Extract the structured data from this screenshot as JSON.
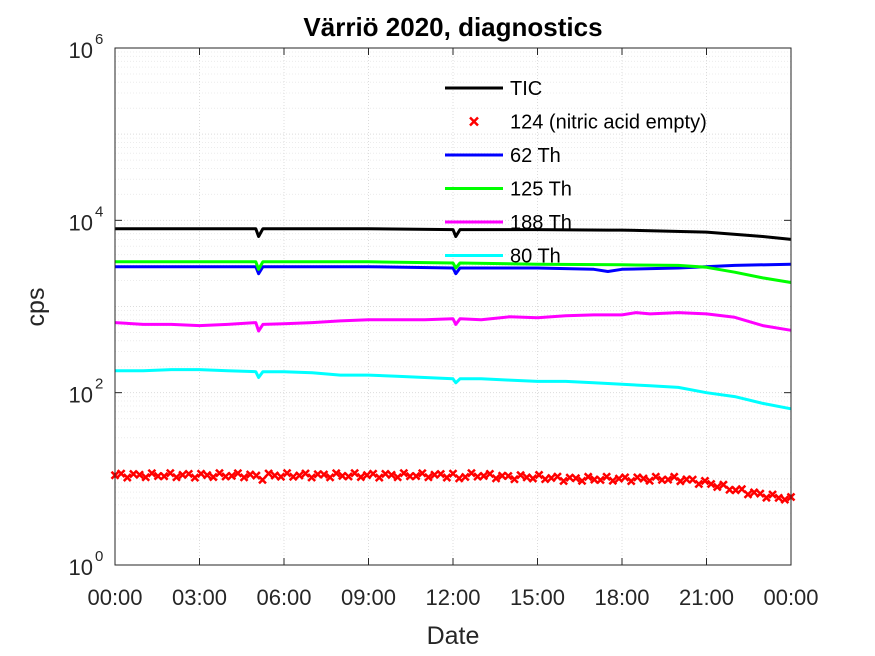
{
  "chart_data": {
    "type": "line",
    "title": "Värriö 2020, diagnostics",
    "xlabel": "Date",
    "ylabel": "cps",
    "yscale": "log",
    "ylim": [
      1,
      1000000
    ],
    "xlim_hours": [
      0,
      24
    ],
    "x_ticks": [
      "00:00",
      "03:00",
      "06:00",
      "09:00",
      "12:00",
      "15:00",
      "18:00",
      "21:00",
      "00:00"
    ],
    "y_ticks": [
      {
        "base": "10",
        "exp": "0"
      },
      {
        "base": "10",
        "exp": "2"
      },
      {
        "base": "10",
        "exp": "4"
      },
      {
        "base": "10",
        "exp": "6"
      }
    ],
    "grid": true,
    "legend_position": "top-right",
    "series": [
      {
        "name": "TIC",
        "color": "#000000",
        "style": "line",
        "points": [
          [
            0,
            8000
          ],
          [
            3,
            8000
          ],
          [
            5,
            8000
          ],
          [
            5.1,
            6500
          ],
          [
            5.25,
            8000
          ],
          [
            9,
            8000
          ],
          [
            12,
            7800
          ],
          [
            12.1,
            6500
          ],
          [
            12.25,
            7800
          ],
          [
            15,
            7800
          ],
          [
            17.5,
            7700
          ],
          [
            18,
            7700
          ],
          [
            21,
            7300
          ],
          [
            23,
            6500
          ],
          [
            24,
            6000
          ]
        ]
      },
      {
        "name": "124 (nitric acid empty)",
        "color": "#ff0000",
        "style": "marker",
        "points": [
          [
            0,
            11
          ],
          [
            1,
            11
          ],
          [
            2,
            11
          ],
          [
            3,
            11
          ],
          [
            4,
            11
          ],
          [
            5,
            11
          ],
          [
            5.1,
            9
          ],
          [
            5.3,
            11
          ],
          [
            6,
            11
          ],
          [
            7,
            11
          ],
          [
            8,
            11
          ],
          [
            9,
            11
          ],
          [
            10,
            11
          ],
          [
            11,
            11
          ],
          [
            12,
            11
          ],
          [
            12.1,
            9
          ],
          [
            12.3,
            11
          ],
          [
            13,
            11
          ],
          [
            14,
            10.5
          ],
          [
            15,
            10.5
          ],
          [
            16,
            10
          ],
          [
            17,
            10
          ],
          [
            18,
            10
          ],
          [
            19,
            10
          ],
          [
            20,
            10
          ],
          [
            21,
            9
          ],
          [
            22,
            7.5
          ],
          [
            23,
            6.5
          ],
          [
            24,
            5.8
          ]
        ]
      },
      {
        "name": "62 Th",
        "color": "#0000ff",
        "style": "line",
        "points": [
          [
            0,
            2900
          ],
          [
            3,
            2900
          ],
          [
            5,
            2900
          ],
          [
            5.1,
            2400
          ],
          [
            5.25,
            2900
          ],
          [
            9,
            2900
          ],
          [
            12,
            2800
          ],
          [
            12.1,
            2400
          ],
          [
            12.25,
            2800
          ],
          [
            15,
            2800
          ],
          [
            17,
            2700
          ],
          [
            17.5,
            2550
          ],
          [
            18,
            2700
          ],
          [
            20,
            2800
          ],
          [
            22,
            3000
          ],
          [
            24,
            3100
          ]
        ]
      },
      {
        "name": "125 Th",
        "color": "#00ff00",
        "style": "line",
        "points": [
          [
            0,
            3300
          ],
          [
            3,
            3300
          ],
          [
            5,
            3300
          ],
          [
            5.1,
            2700
          ],
          [
            5.25,
            3300
          ],
          [
            9,
            3300
          ],
          [
            12,
            3200
          ],
          [
            12.1,
            2800
          ],
          [
            12.25,
            3200
          ],
          [
            15,
            3100
          ],
          [
            18,
            3050
          ],
          [
            20,
            3000
          ],
          [
            21,
            2850
          ],
          [
            22,
            2500
          ],
          [
            23,
            2150
          ],
          [
            24,
            1900
          ]
        ]
      },
      {
        "name": "188 Th",
        "color": "#ff00ff",
        "style": "line",
        "points": [
          [
            0,
            650
          ],
          [
            1,
            620
          ],
          [
            2,
            620
          ],
          [
            3,
            600
          ],
          [
            4,
            620
          ],
          [
            5,
            650
          ],
          [
            5.1,
            520
          ],
          [
            5.25,
            620
          ],
          [
            6,
            630
          ],
          [
            7,
            650
          ],
          [
            8,
            680
          ],
          [
            9,
            700
          ],
          [
            10,
            700
          ],
          [
            11,
            700
          ],
          [
            12,
            720
          ],
          [
            12.1,
            620
          ],
          [
            12.25,
            720
          ],
          [
            13,
            700
          ],
          [
            14,
            760
          ],
          [
            15,
            740
          ],
          [
            16,
            780
          ],
          [
            17,
            800
          ],
          [
            18,
            800
          ],
          [
            18.5,
            850
          ],
          [
            19,
            820
          ],
          [
            20,
            850
          ],
          [
            21,
            820
          ],
          [
            22,
            750
          ],
          [
            23,
            600
          ],
          [
            24,
            530
          ]
        ]
      },
      {
        "name": "80 Th",
        "color": "#00ffff",
        "style": "line",
        "points": [
          [
            0,
            180
          ],
          [
            1,
            180
          ],
          [
            2,
            185
          ],
          [
            3,
            185
          ],
          [
            4,
            180
          ],
          [
            5,
            175
          ],
          [
            5.1,
            150
          ],
          [
            5.25,
            175
          ],
          [
            6,
            175
          ],
          [
            7,
            170
          ],
          [
            8,
            160
          ],
          [
            9,
            160
          ],
          [
            10,
            155
          ],
          [
            11,
            150
          ],
          [
            12,
            145
          ],
          [
            12.1,
            130
          ],
          [
            12.25,
            145
          ],
          [
            13,
            145
          ],
          [
            14,
            140
          ],
          [
            15,
            135
          ],
          [
            16,
            135
          ],
          [
            17,
            130
          ],
          [
            18,
            125
          ],
          [
            19,
            120
          ],
          [
            20,
            115
          ],
          [
            21,
            100
          ],
          [
            22,
            90
          ],
          [
            23,
            75
          ],
          [
            24,
            65
          ]
        ]
      }
    ]
  }
}
